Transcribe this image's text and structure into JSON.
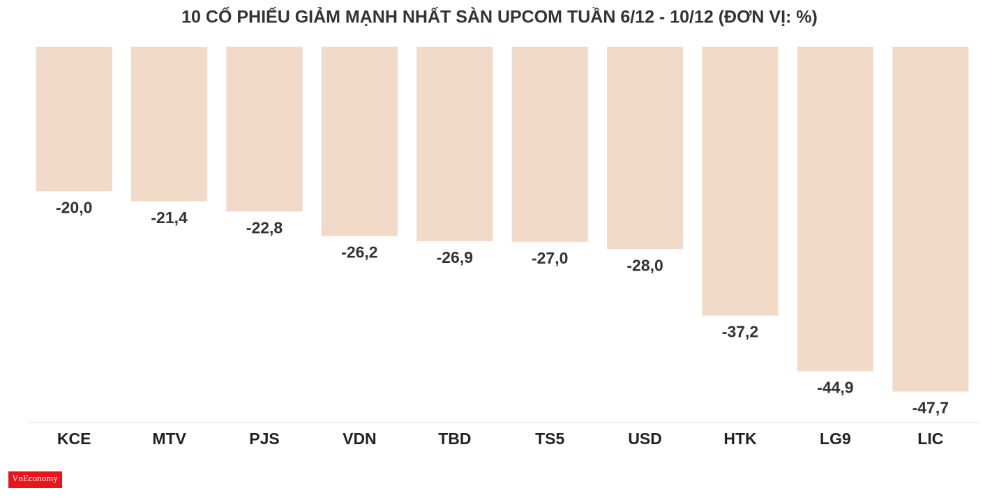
{
  "chart_data": {
    "type": "bar",
    "title": "10 CỔ PHIẾU GIẢM MẠNH NHẤT SÀN UPCOM TUẦN 6/12 - 10/12 (ĐƠN VỊ: %)",
    "categories": [
      "KCE",
      "MTV",
      "PJS",
      "VDN",
      "TBD",
      "TS5",
      "USD",
      "HTK",
      "LG9",
      "LIC"
    ],
    "values": [
      -20.0,
      -21.4,
      -22.8,
      -26.2,
      -26.9,
      -27.0,
      -28.0,
      -37.2,
      -44.9,
      -47.7
    ],
    "value_labels": [
      "-20,0",
      "-21,4",
      "-22,8",
      "-26,2",
      "-26,9",
      "-27,0",
      "-28,0",
      "-37,2",
      "-44,9",
      "-47,7"
    ],
    "color": "#f2dac8",
    "ylim": [
      -52,
      0
    ]
  },
  "logo": "VnEconomy"
}
